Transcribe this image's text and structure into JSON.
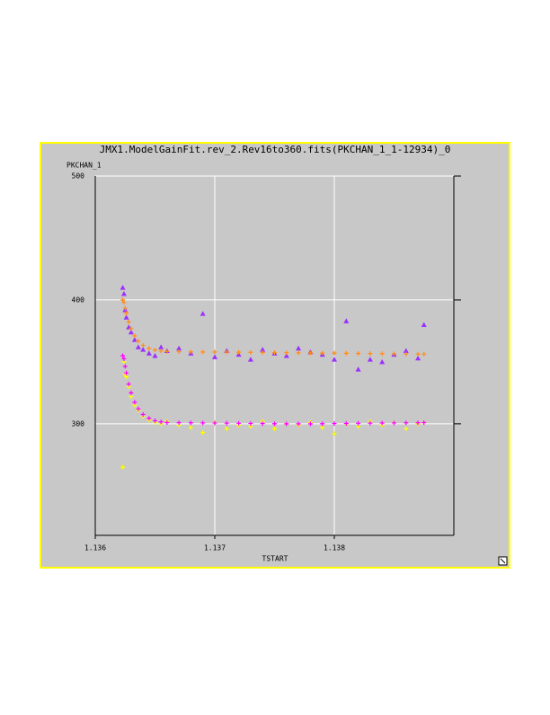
{
  "chart_data": {
    "type": "scatter",
    "title": "JMX1.ModelGainFit.rev_2.Rev16to360.fits(PKCHAN_1_1-12934)_0",
    "y_label": "PKCHAN_1",
    "x_label": "TSTART",
    "xlim": [
      1.136,
      1.139
    ],
    "xticks": [
      1.136,
      1.137,
      1.138
    ],
    "ylim": [
      210,
      500
    ],
    "yticks": [
      300,
      400,
      500
    ],
    "grid": true,
    "x": [
      1.13623,
      1.13624,
      1.13625,
      1.13626,
      1.13628,
      1.1363,
      1.13633,
      1.13636,
      1.1364,
      1.13645,
      1.1365,
      1.13655,
      1.1366,
      1.1367,
      1.1368,
      1.1369,
      1.137,
      1.1371,
      1.1372,
      1.1373,
      1.1374,
      1.1375,
      1.1376,
      1.1377,
      1.1378,
      1.1379,
      1.138,
      1.1381,
      1.1382,
      1.1383,
      1.1384,
      1.1385,
      1.1386,
      1.1387,
      1.13875
    ],
    "series": [
      {
        "color": "#9b30ff",
        "marker": "triangle",
        "values": [
          410,
          405,
          392,
          386,
          378,
          374,
          368,
          362,
          360,
          357,
          355,
          362,
          359,
          361,
          357,
          389,
          354,
          359,
          356,
          352,
          360,
          357,
          355,
          361,
          358,
          356,
          352,
          383,
          344,
          352,
          350,
          356,
          359,
          353,
          380
        ]
      },
      {
        "color": "#ff8c1a",
        "marker": "plus",
        "values": [
          400,
          398,
          393.3,
          389.2,
          382.3,
          376.9,
          371,
          366.9,
          363.4,
          360.9,
          359.6,
          358.8,
          358.4,
          358.2,
          358.1,
          358,
          358,
          357.9,
          357.8,
          357.7,
          357.6,
          357.5,
          357.4,
          357.3,
          357.2,
          357.1,
          357,
          356.9,
          356.8,
          356.7,
          356.6,
          356.5,
          356.4,
          356.3,
          356.3
        ]
      },
      {
        "color": "#ffff00",
        "marker": "plus",
        "values": [
          265,
          350,
          340,
          338,
          330,
          322,
          315,
          311,
          306,
          303,
          301,
          300,
          302,
          299,
          297,
          293,
          301,
          296,
          299,
          298,
          302,
          296,
          300,
          299,
          301,
          297,
          292,
          300,
          298,
          302,
          299,
          301,
          296,
          300,
          301
        ]
      },
      {
        "color": "#ff00ff",
        "marker": "plus",
        "values": [
          355,
          352.5,
          346.4,
          341,
          332.1,
          325,
          317.4,
          312.1,
          307.5,
          304.5,
          302.5,
          301.6,
          301,
          300.9,
          300.8,
          300.7,
          300.6,
          300.5,
          300.4,
          300.3,
          300.2,
          300.1,
          300,
          300,
          300,
          300.1,
          300.2,
          300.3,
          300.4,
          300.5,
          300.6,
          300.7,
          300.8,
          300.9,
          301
        ]
      }
    ]
  }
}
